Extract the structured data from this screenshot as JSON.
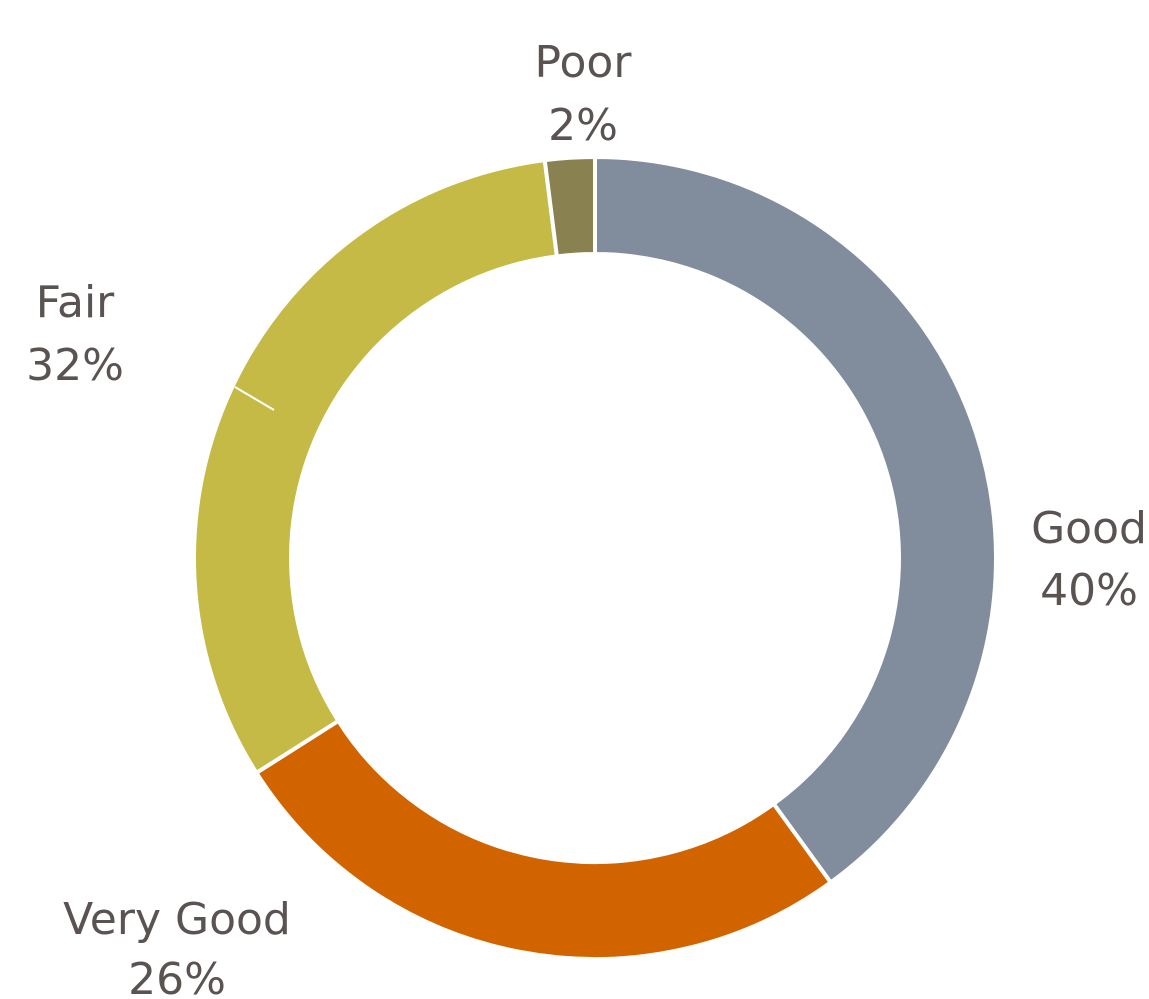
{
  "chart_data": {
    "type": "pie",
    "variant": "donut",
    "title": "",
    "categories": [
      "Good",
      "Very Good",
      "Fair",
      "Poor"
    ],
    "values": [
      40,
      26,
      32,
      2
    ],
    "labels": [
      "40%",
      "26%",
      "32%",
      "2%"
    ],
    "colors": [
      "#818d9d",
      "#d26400",
      "#c4ba45",
      "#89814f"
    ],
    "legend": "none",
    "data_labels": "outside"
  }
}
